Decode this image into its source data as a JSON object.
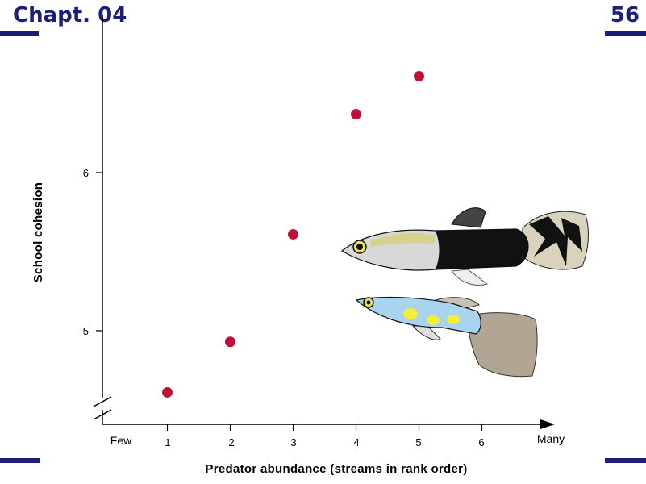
{
  "slide": {
    "title": "Chapt. 04",
    "number": "56",
    "accent": "#1d1d7a"
  },
  "chart_data": {
    "type": "scatter",
    "title": "",
    "xlabel": "Predator abundance (streams in rank order)",
    "ylabel": "School cohesion",
    "x_left_label": "Few",
    "x_right_label": "Many",
    "x_ticks": [
      "1",
      "2",
      "3",
      "4",
      "5",
      "6"
    ],
    "y_ticks": [
      "5",
      "6"
    ],
    "xlim": [
      0,
      6.9
    ],
    "ylim": [
      4.5,
      7.0
    ],
    "axis_break": "y-axis near origin",
    "grid": false,
    "point_color": "#c0103a",
    "x": [
      1,
      2,
      3,
      4,
      5
    ],
    "y": [
      4.61,
      4.93,
      5.61,
      6.37,
      6.61
    ]
  },
  "illustration": {
    "top_fish": "dark-tailed guppy",
    "bottom_fish": "light blue guppy with yellow spots"
  }
}
